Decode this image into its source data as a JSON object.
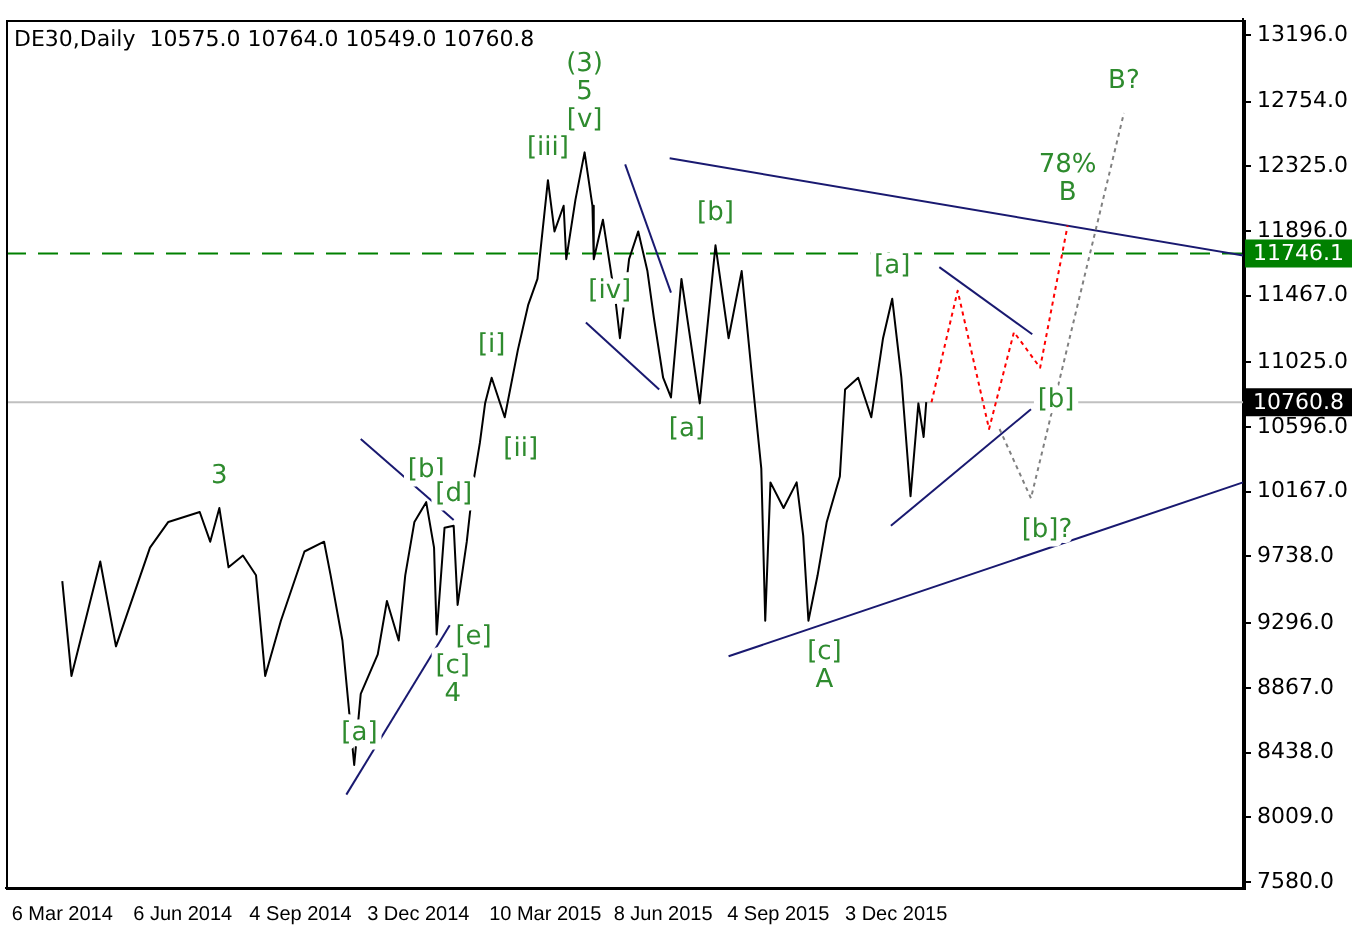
{
  "chart_data": {
    "type": "line",
    "title": "DE30,Daily  10575.0 10764.0 10549.0 10760.8",
    "xlim": [
      "2014-01-22",
      "2016-08-24"
    ],
    "ylim": [
      7540,
      13300
    ],
    "xticks": [
      {
        "value": "2014-03-06",
        "label": "6 Mar 2014"
      },
      {
        "value": "2014-06-06",
        "label": "6 Jun 2014"
      },
      {
        "value": "2014-09-04",
        "label": "4 Sep 2014"
      },
      {
        "value": "2014-12-03",
        "label": "3 Dec 2014"
      },
      {
        "value": "2015-03-10",
        "label": "10 Mar 2015"
      },
      {
        "value": "2015-06-08",
        "label": "8 Jun 2015"
      },
      {
        "value": "2015-09-04",
        "label": "4 Sep 2015"
      },
      {
        "value": "2015-12-03",
        "label": "3 Dec 2015"
      }
    ],
    "yticks": [
      {
        "value": 7580,
        "label": "7580.0"
      },
      {
        "value": 8009,
        "label": "8009.0"
      },
      {
        "value": 8438,
        "label": "8438.0"
      },
      {
        "value": 8867,
        "label": "8867.0"
      },
      {
        "value": 9296,
        "label": "9296.0"
      },
      {
        "value": 9738,
        "label": "9738.0"
      },
      {
        "value": 10167,
        "label": "10167.0"
      },
      {
        "value": 10596,
        "label": "10596.0"
      },
      {
        "value": 11025,
        "label": "11025.0"
      },
      {
        "value": 11467,
        "label": "11467.0"
      },
      {
        "value": 11896,
        "label": "11896.0"
      },
      {
        "value": 12325,
        "label": "12325.0"
      },
      {
        "value": 12754,
        "label": "12754.0"
      },
      {
        "value": 13196,
        "label": "13196.0"
      }
    ],
    "grid": false,
    "legend": false,
    "marker": "none",
    "series": [
      {
        "type": "line",
        "color": "#000000",
        "line_style": "solid",
        "x": [
          "2014-03-06",
          "2014-03-13",
          "2014-04-04",
          "2014-04-16",
          "2014-05-12",
          "2014-05-26",
          "2014-06-19",
          "2014-06-27",
          "2014-07-04",
          "2014-07-11",
          "2014-07-22",
          "2014-08-01",
          "2014-08-08",
          "2014-08-20",
          "2014-09-07",
          "2014-09-22",
          "2014-09-27",
          "2014-10-06",
          "2014-10-15",
          "2014-10-20",
          "2014-11-02",
          "2014-11-09",
          "2014-11-18",
          "2014-11-23",
          "2014-11-30",
          "2014-12-09",
          "2014-12-15",
          "2014-12-17",
          "2014-12-23",
          "2014-12-30",
          "2015-01-02",
          "2015-01-09",
          "2015-01-14",
          "2015-01-19",
          "2015-01-23",
          "2015-01-28",
          "2015-02-07",
          "2015-02-17",
          "2015-02-25",
          "2015-03-04",
          "2015-03-12",
          "2015-03-17",
          "2015-03-24",
          "2015-03-26",
          "2015-04-02",
          "2015-04-09",
          "2015-04-15",
          "2015-04-16",
          "2015-04-23",
          "2015-05-03",
          "2015-05-06",
          "2015-05-13",
          "2015-05-20",
          "2015-05-27",
          "2015-06-01",
          "2015-06-08",
          "2015-06-14",
          "2015-06-22",
          "2015-07-06",
          "2015-07-18",
          "2015-07-28",
          "2015-08-07",
          "2015-08-15",
          "2015-08-22",
          "2015-08-25",
          "2015-08-29",
          "2015-09-08",
          "2015-09-18",
          "2015-09-23",
          "2015-09-27",
          "2015-10-04",
          "2015-10-11",
          "2015-10-21",
          "2015-10-25",
          "2015-11-04",
          "2015-11-14",
          "2015-11-23",
          "2015-11-30",
          "2015-12-07",
          "2015-12-14",
          "2015-12-20",
          "2015-12-24",
          "2015-12-26"
        ],
        "values": [
          9574,
          8946,
          9705,
          9142,
          9797,
          9967,
          10033,
          9836,
          10059,
          9666,
          9744,
          9613,
          8946,
          9312,
          9771,
          9836,
          9613,
          9181,
          8356,
          8827,
          9089,
          9443,
          9181,
          9613,
          9967,
          10098,
          9797,
          9221,
          9928,
          9941,
          9417,
          9836,
          10229,
          10491,
          10753,
          10923,
          10661,
          11106,
          11408,
          11578,
          12233,
          11893,
          12063,
          11709,
          12102,
          12417,
          12063,
          11709,
          11971,
          11408,
          11185,
          11709,
          11893,
          11630,
          11316,
          10923,
          10792,
          11578,
          10753,
          11801,
          11185,
          11630,
          10923,
          10320,
          9312,
          10229,
          10059,
          10229,
          9876,
          9312,
          9613,
          9967,
          10268,
          10845,
          10923,
          10661,
          11185,
          11447,
          10923,
          10137,
          10753,
          10530,
          10760.8
        ]
      },
      {
        "type": "line",
        "color": "#ff0000",
        "line_style": "dotted",
        "x": [
          "2015-12-30",
          "2016-01-19",
          "2016-02-12",
          "2016-03-02",
          "2016-03-11",
          "2016-03-22",
          "2016-04-12"
        ],
        "values": [
          10760,
          11500,
          10583,
          11225,
          11120,
          10989,
          11932
        ]
      },
      {
        "type": "line",
        "color": "#808080",
        "line_style": "dotted",
        "x": [
          "2016-02-20",
          "2016-03-15",
          "2016-05-25"
        ],
        "values": [
          10583,
          10124,
          12678
        ]
      },
      {
        "type": "line",
        "color": "#191970",
        "line_style": "solid",
        "x": [
          "2014-10-09",
          "2014-12-27"
        ],
        "values": [
          8159,
          9282
        ]
      },
      {
        "type": "line",
        "color": "#191970",
        "line_style": "solid",
        "x": [
          "2014-10-20",
          "2014-12-30"
        ],
        "values": [
          10517,
          9980
        ]
      },
      {
        "type": "line",
        "color": "#191970",
        "line_style": "solid",
        "x": [
          "2015-05-10",
          "2015-06-14"
        ],
        "values": [
          12338,
          11487
        ]
      },
      {
        "type": "line",
        "color": "#191970",
        "line_style": "solid",
        "x": [
          "2015-04-10",
          "2015-06-05"
        ],
        "values": [
          11289,
          10845
        ]
      },
      {
        "type": "line",
        "color": "#191970",
        "line_style": "solid",
        "x": [
          "2015-06-13",
          "2016-08-24"
        ],
        "values": [
          12378,
          11734
        ]
      },
      {
        "type": "line",
        "color": "#191970",
        "line_style": "solid",
        "x": [
          "2015-07-28",
          "2016-08-24"
        ],
        "values": [
          9076,
          10229
        ]
      },
      {
        "type": "line",
        "color": "#191970",
        "line_style": "solid",
        "x": [
          "2016-01-05",
          "2016-03-16"
        ],
        "values": [
          11656,
          11211
        ]
      },
      {
        "type": "line",
        "color": "#191970",
        "line_style": "solid",
        "x": [
          "2015-11-29",
          "2016-03-15"
        ],
        "values": [
          9941,
          10714
        ]
      }
    ],
    "ref_lines": [
      {
        "axis": "y",
        "value": 11746.1,
        "label": "11746.1",
        "color": "#008000",
        "line_style": "dashed"
      },
      {
        "axis": "y",
        "value": 10760.8,
        "label": "10760.8",
        "color": "#c0c0c0",
        "line_style": "solid"
      }
    ],
    "annotations": [
      {
        "text": "[v]",
        "x": "2015-04-09",
        "y": 12417
      },
      {
        "text": "5",
        "x": "2015-04-09",
        "y": 12417
      },
      {
        "text": "(3)",
        "x": "2015-04-09",
        "y": 12417
      },
      {
        "text": "[iii]",
        "x": "2015-03-12",
        "y": 12233
      },
      {
        "text": "[i]",
        "x": "2015-01-28",
        "y": 10923
      },
      {
        "text": "[ii]",
        "x": "2015-02-07",
        "y": 10661
      },
      {
        "text": "[iv]",
        "x": "2015-04-16",
        "y": 11709
      },
      {
        "text": "[a]",
        "x": "2015-06-14",
        "y": 10792
      },
      {
        "text": "[b]",
        "x": "2015-07-18",
        "y": 11801
      },
      {
        "text": "[a]",
        "x": "2015-11-30",
        "y": 11447
      },
      {
        "text": "[b]",
        "x": "2016-03-22",
        "y": 10989
      },
      {
        "text": "[b]?",
        "x": "2016-03-15",
        "y": 10124
      },
      {
        "text": "[c]",
        "x": "2015-09-27",
        "y": 9312
      },
      {
        "text": "A",
        "x": "2015-09-27",
        "y": 9312
      },
      {
        "text": "B",
        "x": "2016-04-12",
        "y": 11932
      },
      {
        "text": "78%",
        "x": "2016-04-12",
        "y": 11932
      },
      {
        "text": "B?",
        "x": "2016-05-25",
        "y": 12678
      },
      {
        "text": "3",
        "x": "2014-07-04",
        "y": 10059
      },
      {
        "text": "[b]",
        "x": "2014-12-09",
        "y": 10098
      },
      {
        "text": "[d]",
        "x": "2014-12-30",
        "y": 9941
      },
      {
        "text": "[e]",
        "x": "2015-01-02",
        "y": 9417
      },
      {
        "text": "[c]",
        "x": "2014-12-17",
        "y": 9221
      },
      {
        "text": "4",
        "x": "2014-12-17",
        "y": 9221
      },
      {
        "text": "[a]",
        "x": "2014-10-19",
        "y": 8356
      }
    ]
  }
}
